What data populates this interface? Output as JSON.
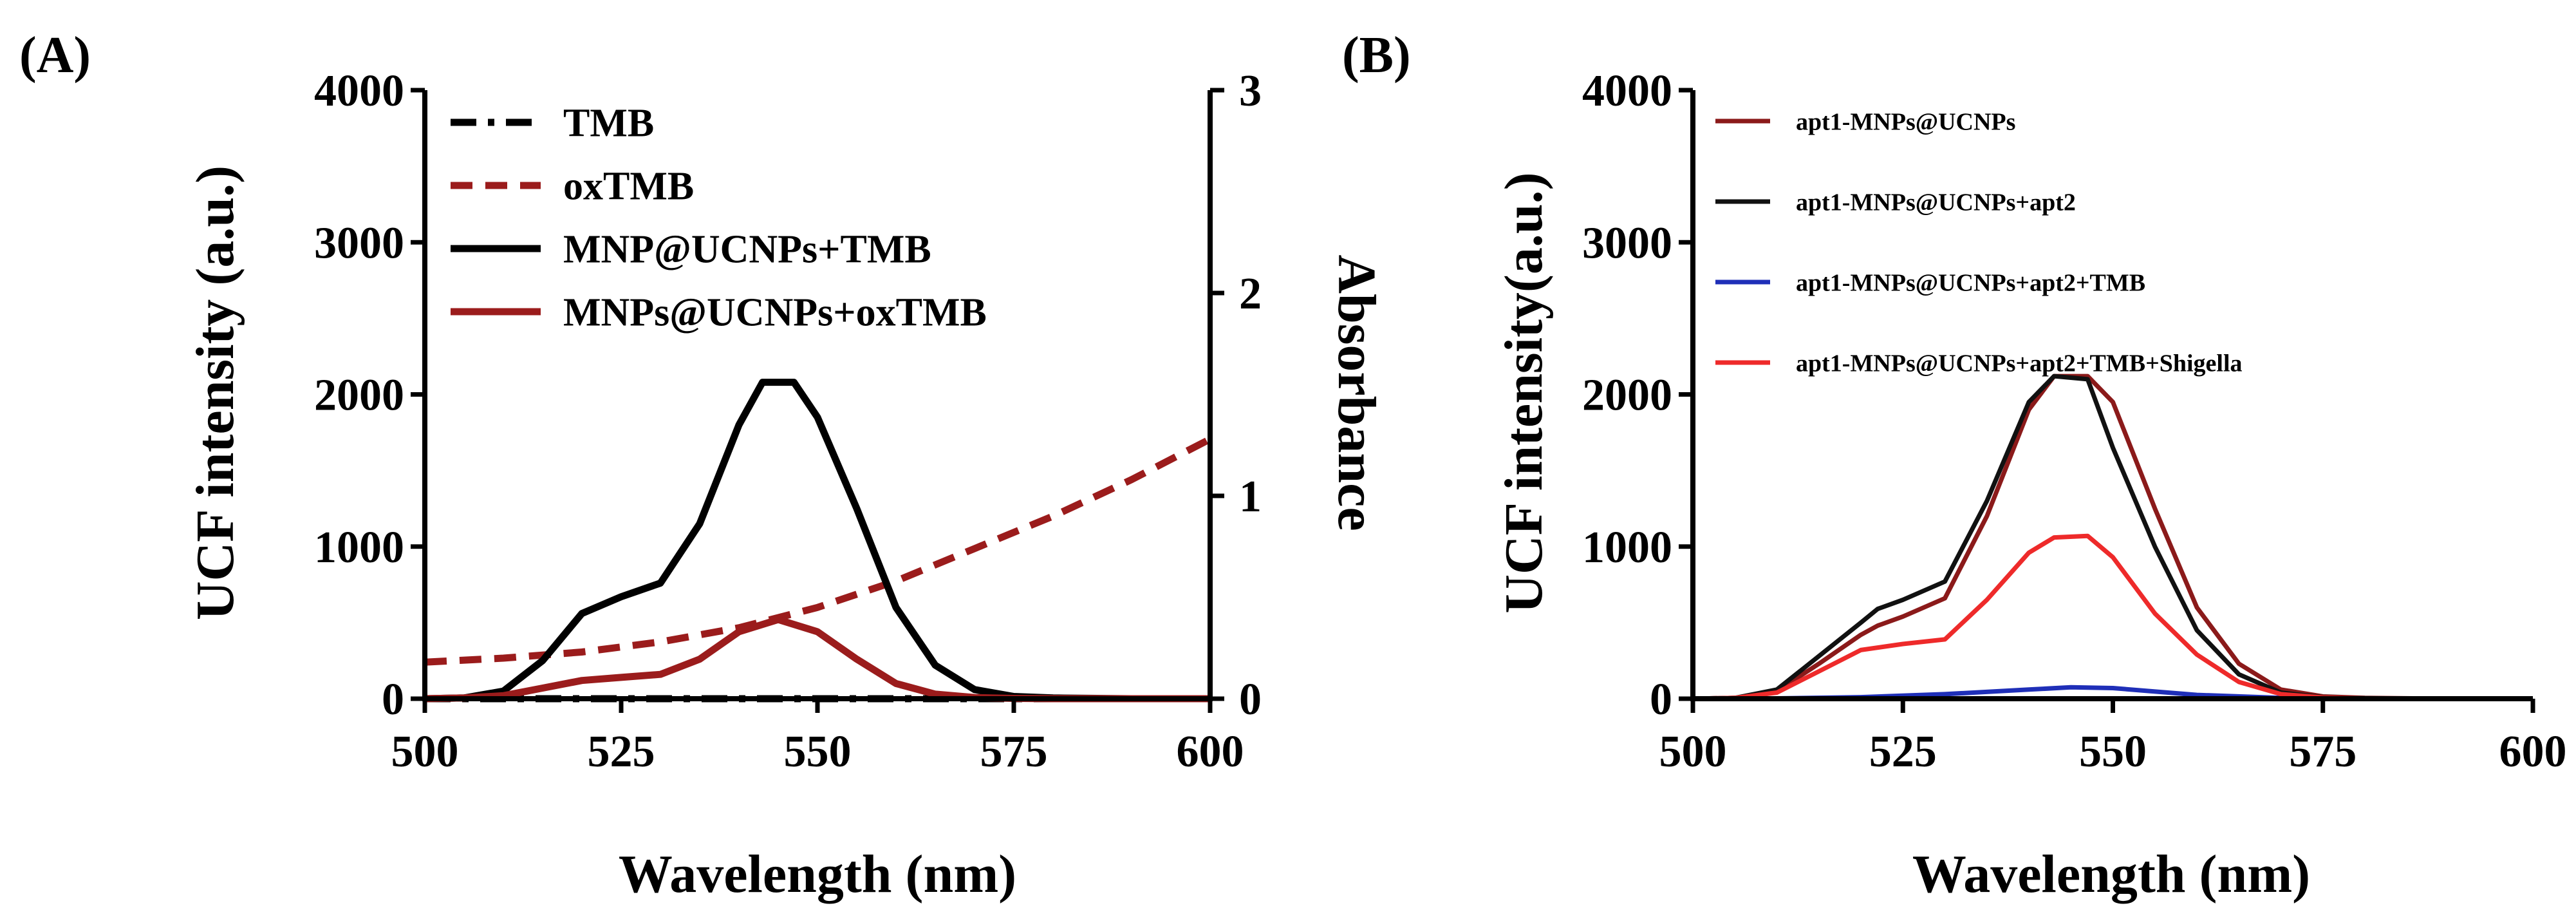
{
  "chart_data": [
    {
      "panel_label": "(A)",
      "type": "line",
      "xlabel": "Wavelength (nm)",
      "ylabel": "UCF intensity (a.u.)",
      "y2label": "Absorbance",
      "xlim": [
        500,
        600
      ],
      "ylim": [
        0,
        4000
      ],
      "y2lim": [
        0,
        3
      ],
      "xticks": [
        "500",
        "525",
        "550",
        "575",
        "600"
      ],
      "yticks": [
        "0",
        "1000",
        "2000",
        "3000",
        "4000"
      ],
      "y2ticks": [
        "0",
        "1",
        "2",
        "3"
      ],
      "legend_position": "top-left",
      "series": [
        {
          "name": "TMB",
          "axis": "right",
          "color": "#000000",
          "style": "dashdot",
          "x": [
            500,
            520,
            540,
            560,
            580,
            600
          ],
          "y": [
            0.0,
            0.0,
            0.0,
            0.0,
            0.0,
            0.0
          ]
        },
        {
          "name": "oxTMB",
          "axis": "right",
          "color": "#9b1c1c",
          "style": "dashed",
          "x": [
            500,
            510,
            520,
            530,
            540,
            550,
            560,
            570,
            580,
            590,
            600
          ],
          "y": [
            0.18,
            0.2,
            0.23,
            0.28,
            0.35,
            0.45,
            0.58,
            0.74,
            0.9,
            1.08,
            1.28
          ]
        },
        {
          "name": "MNP@UCNPs+TMB",
          "axis": "left",
          "color": "#000000",
          "style": "solid",
          "x": [
            500,
            505,
            510,
            515,
            520,
            525,
            530,
            535,
            540,
            543,
            547,
            550,
            555,
            560,
            565,
            570,
            575,
            580,
            590,
            600
          ],
          "y": [
            0,
            5,
            50,
            250,
            560,
            670,
            760,
            1150,
            1800,
            2080,
            2080,
            1850,
            1250,
            600,
            220,
            60,
            15,
            5,
            0,
            0
          ]
        },
        {
          "name": "MNPs@UCNPs+oxTMB",
          "axis": "left",
          "color": "#9b1c1c",
          "style": "solid",
          "x": [
            500,
            505,
            510,
            515,
            520,
            525,
            530,
            535,
            540,
            545,
            550,
            555,
            560,
            565,
            570,
            575,
            580,
            590,
            600
          ],
          "y": [
            0,
            5,
            20,
            70,
            120,
            140,
            160,
            260,
            440,
            520,
            440,
            260,
            100,
            30,
            8,
            2,
            0,
            0,
            0
          ]
        }
      ]
    },
    {
      "panel_label": "(B)",
      "type": "line",
      "xlabel": "Wavelength (nm)",
      "ylabel": "UCF intensity(a.u.)",
      "xlim": [
        500,
        600
      ],
      "ylim": [
        0,
        4000
      ],
      "xticks": [
        "500",
        "525",
        "550",
        "575",
        "600"
      ],
      "yticks": [
        "0",
        "1000",
        "2000",
        "3000",
        "4000"
      ],
      "legend_position": "top-left",
      "series": [
        {
          "name": "apt1-MNPs@UCNPs",
          "color": "#8b1a1a",
          "style": "solid",
          "x": [
            500,
            505,
            510,
            515,
            520,
            522,
            525,
            530,
            535,
            540,
            543,
            547,
            550,
            555,
            560,
            565,
            570,
            575,
            580,
            590,
            600
          ],
          "y": [
            0,
            5,
            50,
            230,
            420,
            480,
            540,
            660,
            1200,
            1900,
            2120,
            2120,
            1950,
            1250,
            600,
            230,
            60,
            15,
            5,
            0,
            0
          ]
        },
        {
          "name": "apt1-MNPs@UCNPs+apt2",
          "color": "#111111",
          "style": "solid",
          "x": [
            500,
            505,
            510,
            515,
            520,
            522,
            525,
            530,
            535,
            540,
            543,
            547,
            550,
            555,
            560,
            565,
            570,
            575,
            580,
            590,
            600
          ],
          "y": [
            0,
            5,
            60,
            280,
            500,
            590,
            650,
            770,
            1300,
            1950,
            2120,
            2100,
            1650,
            1000,
            450,
            160,
            40,
            10,
            3,
            0,
            0
          ]
        },
        {
          "name": "apt1-MNPs@UCNPs+apt2+TMB",
          "color": "#1f2fb8",
          "style": "solid",
          "x": [
            500,
            510,
            520,
            530,
            540,
            545,
            550,
            560,
            570,
            580,
            600
          ],
          "y": [
            0,
            2,
            10,
            30,
            60,
            75,
            70,
            25,
            5,
            0,
            0
          ]
        },
        {
          "name": "apt1-MNPs@UCNPs+apt2+TMB+Shigella",
          "color": "#ee2a2a",
          "style": "solid",
          "x": [
            500,
            505,
            510,
            515,
            520,
            525,
            530,
            535,
            540,
            543,
            547,
            550,
            555,
            560,
            565,
            570,
            575,
            580,
            590,
            600
          ],
          "y": [
            0,
            5,
            40,
            180,
            320,
            360,
            390,
            650,
            960,
            1060,
            1070,
            930,
            560,
            290,
            110,
            30,
            8,
            2,
            0,
            0
          ]
        }
      ]
    }
  ]
}
